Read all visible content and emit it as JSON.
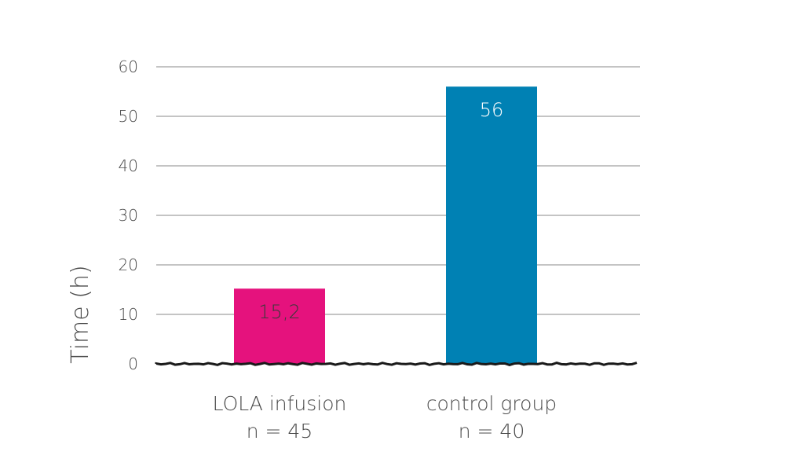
{
  "chart_data": {
    "type": "bar",
    "title": "",
    "ylabel": "Time (h)",
    "xlabel": "",
    "ylim": [
      0,
      60
    ],
    "yticks": [
      0,
      10,
      20,
      30,
      40,
      50,
      60
    ],
    "grid": true,
    "categories": [
      {
        "name": "LOLA infusion",
        "n_label": "n = 45"
      },
      {
        "name": "control group",
        "n_label": "n = 40"
      }
    ],
    "values": [
      15.2,
      56
    ],
    "value_labels": [
      "15,2",
      "56"
    ],
    "colors": [
      "#e5127d",
      "#0081b4"
    ],
    "value_label_colors": [
      "#3a3a3a",
      "#ffffff"
    ]
  }
}
